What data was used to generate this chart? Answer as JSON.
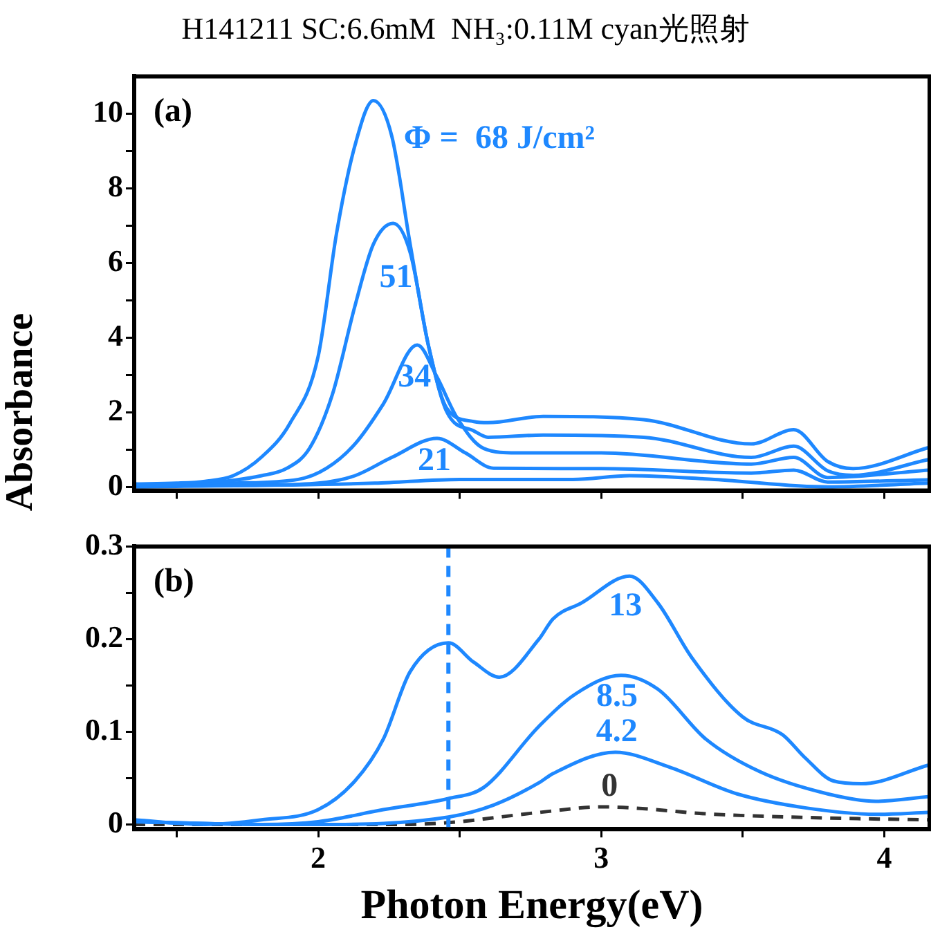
{
  "chart_data": [
    {
      "type": "line",
      "title": "H141211 SC:6.6mM  NH₃:0.11M cyan光照射",
      "ylabel": "Absorbance",
      "annotations": [
        "(a)"
      ],
      "xlim": [
        1.35,
        4.16
      ],
      "xticks": [
        {
          "value": 1.5,
          "label": null
        },
        2,
        {
          "value": 2.5,
          "label": null
        },
        3,
        {
          "value": 3.5,
          "label": null
        },
        4
      ],
      "ylim": [
        -0.1,
        11
      ],
      "yticks": [
        0,
        {
          "value": 1,
          "label": null
        },
        2,
        {
          "value": 3,
          "label": null
        },
        4,
        {
          "value": 5,
          "label": null
        },
        6,
        {
          "value": 7,
          "label": null
        },
        8,
        {
          "value": 9,
          "label": null
        },
        10
      ],
      "tick_labels": "y",
      "grid": false,
      "legend": false,
      "marker": "none",
      "line_style": "solid",
      "series": [
        {
          "name": "Φ =  68 J/cm²",
          "color": "#1e88ff",
          "x": [
            1.35,
            1.5,
            1.6,
            1.7,
            1.8,
            1.9,
            2.0,
            2.065,
            2.13,
            2.195,
            2.26,
            2.325,
            2.39,
            2.455,
            2.55,
            2.6,
            2.795,
            3.15,
            3.53,
            3.68,
            3.8,
            3.89,
            4.155
          ],
          "values": [
            0.08,
            0.1,
            0.15,
            0.3,
            0.8,
            1.7,
            3.5,
            6.8,
            9.15,
            10.35,
            9.4,
            6.5,
            3.77,
            2.1,
            1.75,
            1.72,
            1.89,
            1.8,
            1.15,
            1.53,
            0.68,
            0.49,
            1.05
          ]
        },
        {
          "name": "51",
          "color": "#1e88ff",
          "x": [
            1.35,
            1.6,
            1.8,
            1.89,
            1.97,
            2.05,
            2.13,
            2.195,
            2.265,
            2.325,
            2.39,
            2.455,
            2.55,
            2.6,
            2.795,
            3.15,
            3.53,
            3.68,
            3.8,
            3.89,
            4.155
          ],
          "values": [
            0.05,
            0.1,
            0.3,
            0.5,
            1.04,
            2.47,
            4.85,
            6.5,
            7.06,
            6.28,
            3.77,
            2.0,
            1.5,
            1.33,
            1.39,
            1.33,
            0.79,
            1.09,
            0.43,
            0.31,
            0.73
          ]
        },
        {
          "name": "34",
          "color": "#1e88ff",
          "x": [
            1.35,
            1.7,
            1.93,
            2.03,
            2.13,
            2.23,
            2.35,
            2.42,
            2.49,
            2.585,
            2.7,
            3.0,
            3.53,
            3.68,
            3.8,
            4.155
          ],
          "values": [
            0.04,
            0.1,
            0.2,
            0.5,
            1.15,
            2.22,
            3.8,
            2.94,
            1.86,
            1.03,
            0.91,
            0.91,
            0.61,
            0.79,
            0.25,
            0.45
          ]
        },
        {
          "name": "21",
          "color": "#1e88ff",
          "x": [
            1.35,
            1.8,
            2.0,
            2.13,
            2.26,
            2.42,
            2.52,
            2.62,
            3.0,
            3.53,
            3.68,
            3.8,
            4.155
          ],
          "values": [
            0.03,
            0.05,
            0.1,
            0.3,
            0.79,
            1.3,
            0.91,
            0.5,
            0.49,
            0.37,
            0.45,
            0.13,
            0.19
          ]
        },
        {
          "color": "#1e88ff",
          "x": [
            1.35,
            2.2,
            2.5,
            2.9,
            3.1,
            3.4,
            3.8,
            4.155
          ],
          "values": [
            0.0,
            0.1,
            0.2,
            0.2,
            0.3,
            0.2,
            0.0,
            0.1
          ]
        }
      ]
    },
    {
      "type": "line",
      "xlabel": "Photon Energy(eV)",
      "annotations": [
        "(b)"
      ],
      "xlim": [
        1.35,
        4.16
      ],
      "xticks": [
        {
          "value": 1.5,
          "label": null
        },
        2,
        {
          "value": 2.5,
          "label": null
        },
        3,
        {
          "value": 3.5,
          "label": null
        },
        4
      ],
      "ylim": [
        -0.005,
        0.3
      ],
      "yticks": [
        0,
        {
          "value": 0.05,
          "label": null
        },
        0.1,
        {
          "value": 0.15,
          "label": null
        },
        0.2,
        {
          "value": 0.25,
          "label": null
        },
        0.3
      ],
      "grid": false,
      "legend": false,
      "marker": "none",
      "line_style": "solid",
      "ref_lines": [
        {
          "axis": "x",
          "value": 2.46,
          "color": "#1e88ff",
          "line_style": "dashed"
        }
      ],
      "series": [
        {
          "name": "13",
          "color": "#1e88ff",
          "x": [
            1.35,
            1.6,
            1.8,
            2.0,
            2.13,
            2.23,
            2.325,
            2.46,
            2.55,
            2.64,
            2.78,
            2.83,
            2.93,
            3.1,
            3.2,
            3.32,
            3.5,
            3.64,
            3.72,
            3.82,
            3.92,
            4.155
          ],
          "values": [
            0.005,
            0.0,
            0.005,
            0.016,
            0.047,
            0.092,
            0.165,
            0.196,
            0.175,
            0.159,
            0.2,
            0.222,
            0.239,
            0.268,
            0.239,
            0.18,
            0.116,
            0.097,
            0.072,
            0.047,
            0.044,
            0.064
          ]
        },
        {
          "name": "8.5",
          "color": "#1e88ff",
          "x": [
            1.35,
            1.8,
            2.0,
            2.23,
            2.46,
            2.585,
            2.78,
            2.91,
            3.07,
            3.2,
            3.37,
            3.56,
            3.8,
            3.97,
            4.155
          ],
          "values": [
            0.003,
            0.0,
            0.003,
            0.016,
            0.028,
            0.04,
            0.106,
            0.141,
            0.161,
            0.146,
            0.092,
            0.057,
            0.033,
            0.025,
            0.03
          ]
        },
        {
          "name": "4.2",
          "color": "#1e88ff",
          "x": [
            1.35,
            1.8,
            2.0,
            2.46,
            2.62,
            2.78,
            2.83,
            3.05,
            3.24,
            3.48,
            3.72,
            3.97,
            4.155
          ],
          "values": [
            0.003,
            0.0,
            0.0,
            0.008,
            0.021,
            0.045,
            0.055,
            0.078,
            0.062,
            0.033,
            0.018,
            0.011,
            0.013
          ]
        },
        {
          "name": "0",
          "color": "#333333",
          "line_style": "dashed",
          "x": [
            1.35,
            2.0,
            2.3,
            2.46,
            2.78,
            3.005,
            3.4,
            3.8,
            4.155
          ],
          "values": [
            0.0,
            0.0,
            0.0,
            0.002,
            0.013,
            0.019,
            0.011,
            0.007,
            0.005
          ]
        }
      ]
    }
  ]
}
